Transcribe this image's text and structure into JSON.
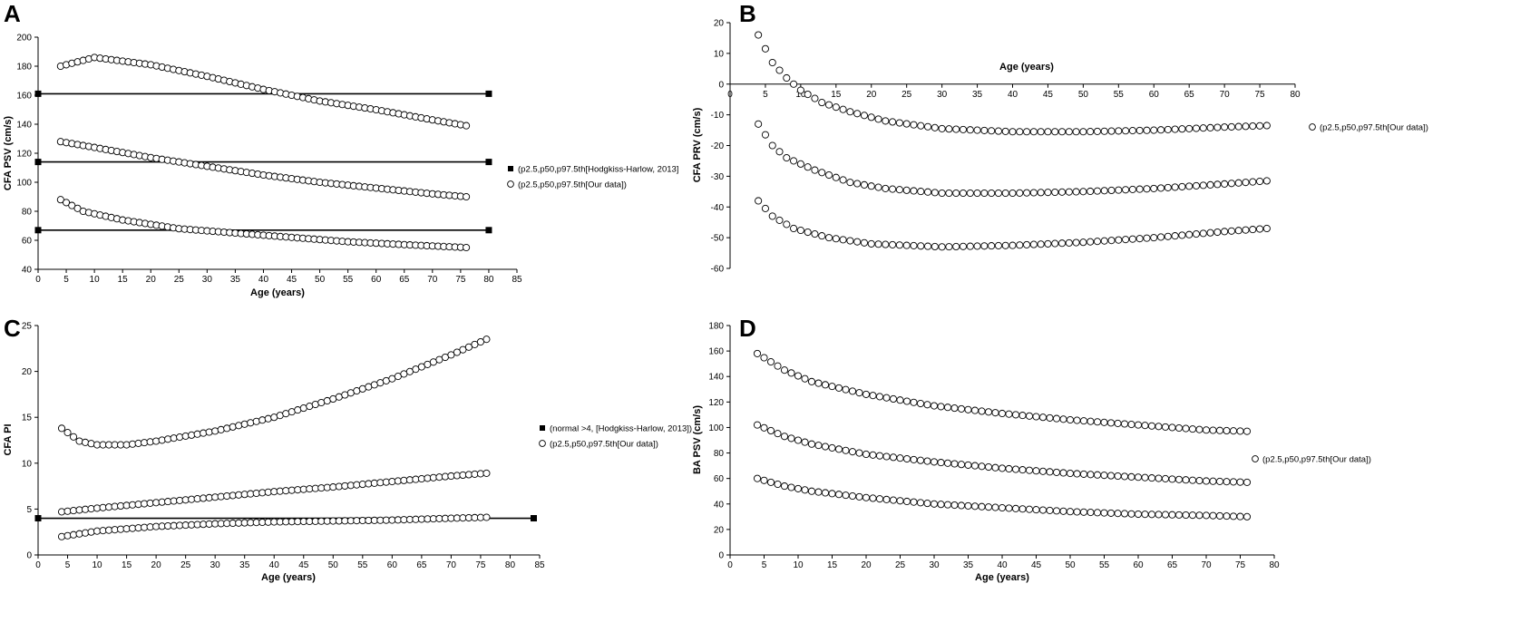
{
  "chart_data": [
    {
      "panel": "A",
      "type": "scatter",
      "xlabel": "Age (years)",
      "ylabel": "CFA PSV (cm/s)",
      "xlim": [
        0,
        85
      ],
      "ylim": [
        40,
        200
      ],
      "xticks": [
        "0",
        "5",
        "10",
        "15",
        "20",
        "25",
        "30",
        "35",
        "40",
        "45",
        "50",
        "55",
        "60",
        "65",
        "70",
        "75",
        "80",
        "85"
      ],
      "yticks": [
        "40",
        "60",
        "80",
        "100",
        "120",
        "140",
        "160",
        "180",
        "200"
      ],
      "legend": [
        {
          "label": "(p2.5,p50,p97.5th[Hodgkiss-Harlow, 2013]",
          "marker": "filled-square-line"
        },
        {
          "label": "(p2.5,p50,p97.5th[Our data])",
          "marker": "open-circle"
        }
      ],
      "reference_series": {
        "x": [
          0,
          80
        ],
        "levels": [
          161,
          114,
          67
        ]
      },
      "series": [
        {
          "name": "p97.5",
          "knots": [
            [
              4,
              180
            ],
            [
              10,
              186
            ],
            [
              20,
              181
            ],
            [
              30,
              173
            ],
            [
              40,
              164
            ],
            [
              50,
              156
            ],
            [
              60,
              150
            ],
            [
              70,
              143
            ],
            [
              76,
              139
            ]
          ]
        },
        {
          "name": "p50",
          "knots": [
            [
              4,
              128
            ],
            [
              10,
              124
            ],
            [
              20,
              117
            ],
            [
              30,
              111
            ],
            [
              40,
              105
            ],
            [
              50,
              100
            ],
            [
              60,
              96
            ],
            [
              70,
              92
            ],
            [
              76,
              90
            ]
          ]
        },
        {
          "name": "p2.5",
          "knots": [
            [
              4,
              88
            ],
            [
              8,
              80
            ],
            [
              15,
              74
            ],
            [
              25,
              68
            ],
            [
              35,
              65
            ],
            [
              45,
              62
            ],
            [
              55,
              59
            ],
            [
              65,
              57
            ],
            [
              76,
              55
            ]
          ]
        }
      ]
    },
    {
      "panel": "B",
      "type": "scatter",
      "xlabel": "Age (years)",
      "ylabel": "CFA PRV (cm/s)",
      "xlim": [
        0,
        80
      ],
      "ylim": [
        -60,
        20
      ],
      "xticks": [
        "0",
        "5",
        "10",
        "15",
        "20",
        "25",
        "30",
        "35",
        "40",
        "45",
        "50",
        "55",
        "60",
        "65",
        "70",
        "75",
        "80"
      ],
      "yticks": [
        "-60",
        "-50",
        "-40",
        "-30",
        "-20",
        "-10",
        "0",
        "10",
        "20"
      ],
      "legend": [
        {
          "label": "(p2.5,p50,p97.5th[Our data])",
          "marker": "open-circle"
        }
      ],
      "series": [
        {
          "name": "p97.5",
          "knots": [
            [
              4,
              16
            ],
            [
              6,
              7
            ],
            [
              8,
              2
            ],
            [
              10,
              -2
            ],
            [
              13,
              -6
            ],
            [
              17,
              -9
            ],
            [
              22,
              -12
            ],
            [
              30,
              -14.5
            ],
            [
              40,
              -15.5
            ],
            [
              50,
              -15.5
            ],
            [
              60,
              -15
            ],
            [
              70,
              -14
            ],
            [
              76,
              -13.5
            ]
          ]
        },
        {
          "name": "p50",
          "knots": [
            [
              4,
              -13
            ],
            [
              6,
              -20
            ],
            [
              8,
              -24
            ],
            [
              12,
              -28
            ],
            [
              17,
              -32
            ],
            [
              22,
              -34
            ],
            [
              30,
              -35.5
            ],
            [
              40,
              -35.5
            ],
            [
              50,
              -35
            ],
            [
              60,
              -34
            ],
            [
              70,
              -32.5
            ],
            [
              76,
              -31.5
            ]
          ]
        },
        {
          "name": "p2.5",
          "knots": [
            [
              4,
              -38
            ],
            [
              6,
              -43
            ],
            [
              9,
              -47
            ],
            [
              14,
              -50
            ],
            [
              20,
              -52
            ],
            [
              30,
              -53
            ],
            [
              40,
              -52.5
            ],
            [
              50,
              -51.5
            ],
            [
              60,
              -50
            ],
            [
              70,
              -48
            ],
            [
              76,
              -47
            ]
          ]
        }
      ]
    },
    {
      "panel": "C",
      "type": "scatter",
      "xlabel": "Age (years)",
      "ylabel": "CFA PI",
      "xlim": [
        0,
        85
      ],
      "ylim": [
        0,
        25
      ],
      "xticks": [
        "0",
        "5",
        "10",
        "15",
        "20",
        "25",
        "30",
        "35",
        "40",
        "45",
        "50",
        "55",
        "60",
        "65",
        "70",
        "75",
        "80",
        "85"
      ],
      "yticks": [
        "0",
        "5",
        "10",
        "15",
        "20",
        "25"
      ],
      "legend": [
        {
          "label": "(normal >4, [Hodgkiss-Harlow, 2013])",
          "marker": "filled-square-line"
        },
        {
          "label": "(p2.5,p50,p97.5th[Our data])",
          "marker": "open-circle"
        }
      ],
      "reference_series": {
        "x": [
          0,
          84
        ],
        "levels": [
          4
        ]
      },
      "series": [
        {
          "name": "p97.5",
          "knots": [
            [
              4,
              13.8
            ],
            [
              7,
              12.4
            ],
            [
              10,
              12
            ],
            [
              15,
              12
            ],
            [
              20,
              12.4
            ],
            [
              30,
              13.5
            ],
            [
              40,
              15
            ],
            [
              50,
              17
            ],
            [
              60,
              19.2
            ],
            [
              70,
              21.8
            ],
            [
              76,
              23.5
            ]
          ]
        },
        {
          "name": "p50",
          "knots": [
            [
              4,
              4.7
            ],
            [
              10,
              5.1
            ],
            [
              20,
              5.7
            ],
            [
              30,
              6.3
            ],
            [
              40,
              6.9
            ],
            [
              50,
              7.4
            ],
            [
              60,
              8
            ],
            [
              70,
              8.6
            ],
            [
              76,
              8.9
            ]
          ]
        },
        {
          "name": "p2.5",
          "knots": [
            [
              4,
              2
            ],
            [
              10,
              2.6
            ],
            [
              20,
              3.1
            ],
            [
              30,
              3.4
            ],
            [
              40,
              3.6
            ],
            [
              50,
              3.7
            ],
            [
              60,
              3.8
            ],
            [
              70,
              4
            ],
            [
              76,
              4.1
            ]
          ]
        }
      ]
    },
    {
      "panel": "D",
      "type": "scatter",
      "xlabel": "Age (years)",
      "ylabel": "BA PSV (cm/s)",
      "xlim": [
        0,
        80
      ],
      "ylim": [
        0,
        180
      ],
      "xticks": [
        "0",
        "5",
        "10",
        "15",
        "20",
        "25",
        "30",
        "35",
        "40",
        "45",
        "50",
        "55",
        "60",
        "65",
        "70",
        "75",
        "80"
      ],
      "yticks": [
        "0",
        "20",
        "40",
        "60",
        "80",
        "100",
        "120",
        "140",
        "160",
        "180"
      ],
      "legend": [
        {
          "label": "(p2.5,p50,p97.5th[Our data])",
          "marker": "open-circle"
        }
      ],
      "series": [
        {
          "name": "p97.5",
          "knots": [
            [
              4,
              158
            ],
            [
              8,
              145
            ],
            [
              12,
              136
            ],
            [
              20,
              126
            ],
            [
              30,
              117
            ],
            [
              40,
              111
            ],
            [
              50,
              106
            ],
            [
              60,
              102
            ],
            [
              70,
              98
            ],
            [
              76,
              97
            ]
          ]
        },
        {
          "name": "p50",
          "knots": [
            [
              4,
              102
            ],
            [
              8,
              93
            ],
            [
              12,
              87
            ],
            [
              20,
              79
            ],
            [
              30,
              73
            ],
            [
              40,
              68
            ],
            [
              50,
              64
            ],
            [
              60,
              61
            ],
            [
              70,
              58
            ],
            [
              76,
              57
            ]
          ]
        },
        {
          "name": "p2.5",
          "knots": [
            [
              4,
              60
            ],
            [
              8,
              54
            ],
            [
              12,
              50
            ],
            [
              20,
              45
            ],
            [
              30,
              40
            ],
            [
              40,
              37
            ],
            [
              50,
              34
            ],
            [
              60,
              32
            ],
            [
              70,
              31
            ],
            [
              76,
              30
            ]
          ]
        }
      ]
    }
  ]
}
